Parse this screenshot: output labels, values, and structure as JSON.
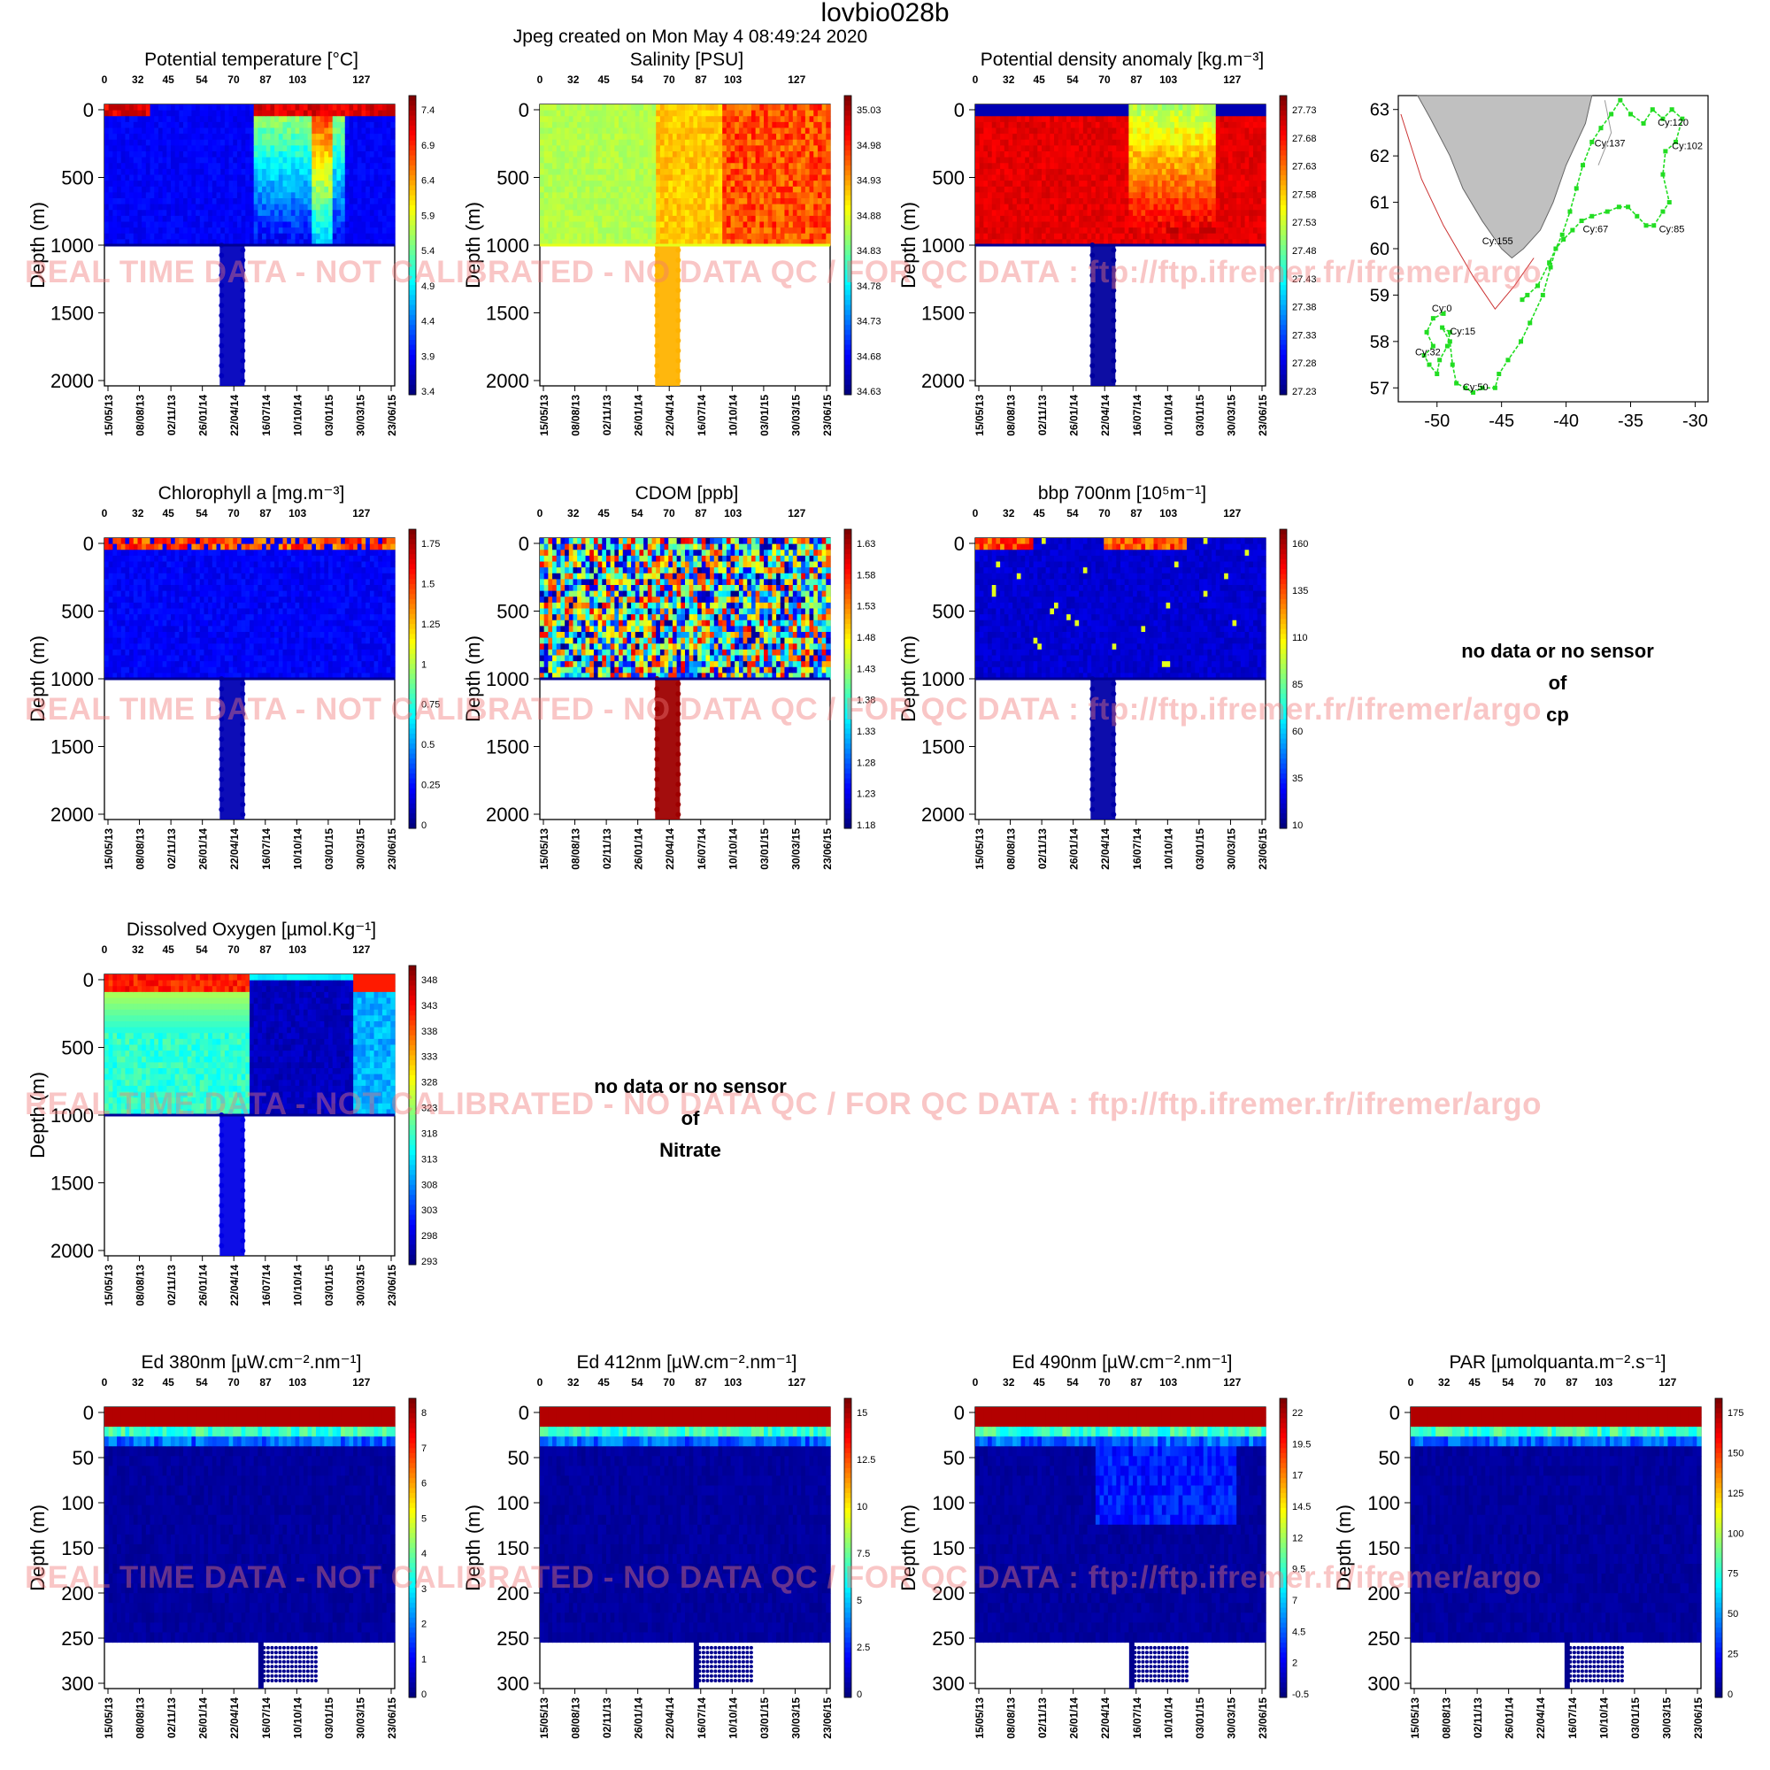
{
  "page": {
    "title": "lovbio028b",
    "subtitle": "Jpeg created on  Mon May  4 08:49:24 2020",
    "watermark": "REAL TIME DATA - NOT CALIBRATED - NO DATA QC   /  FOR QC DATA : ftp://ftp.ifremer.fr/ifremer/argo",
    "no_data": [
      {
        "line1": "no data or no sensor",
        "line2": "of",
        "param": "cp"
      },
      {
        "line1": "no data or no sensor",
        "line2": "of",
        "param": "Nitrate"
      }
    ]
  },
  "chart_data": [
    {
      "type": "heatmap",
      "title": "Potential temperature [°C]",
      "ylabel": "Depth (m)",
      "ylim": [
        2000,
        0
      ],
      "yticks": [
        "0",
        "500",
        "1000",
        "1500",
        "2000"
      ],
      "cycle_ticks": [
        "0",
        "32",
        "45",
        "54",
        "70",
        "87",
        "103",
        "127"
      ],
      "date_ticks": [
        "15/05/13",
        "08/08/13",
        "02/11/13",
        "26/01/14",
        "22/04/14",
        "16/07/14",
        "10/10/14",
        "03/01/15",
        "30/03/15",
        "23/06/15"
      ],
      "colorbar": [
        "7.4",
        "6.9",
        "6.4",
        "5.9",
        "5.4",
        "4.9",
        "4.4",
        "3.9",
        "3.4"
      ],
      "colorscale": "jet",
      "grid": false
    },
    {
      "type": "heatmap",
      "title": "Salinity [PSU]",
      "ylabel": "Depth (m)",
      "ylim": [
        2000,
        0
      ],
      "yticks": [
        "0",
        "500",
        "1000",
        "1500",
        "2000"
      ],
      "cycle_ticks": [
        "0",
        "32",
        "45",
        "54",
        "70",
        "87",
        "103",
        "127"
      ],
      "date_ticks": [
        "15/05/13",
        "08/08/13",
        "02/11/13",
        "26/01/14",
        "22/04/14",
        "16/07/14",
        "10/10/14",
        "03/01/15",
        "30/03/15",
        "23/06/15"
      ],
      "colorbar": [
        "35.03",
        "34.98",
        "34.93",
        "34.88",
        "34.83",
        "34.78",
        "34.73",
        "34.68",
        "34.63"
      ],
      "colorscale": "jet",
      "grid": false
    },
    {
      "type": "heatmap",
      "title": "Potential density anomaly [kg.m⁻³]",
      "ylabel": "Depth (m)",
      "ylim": [
        2000,
        0
      ],
      "yticks": [
        "0",
        "500",
        "1000",
        "1500",
        "2000"
      ],
      "cycle_ticks": [
        "0",
        "32",
        "45",
        "54",
        "70",
        "87",
        "103",
        "127"
      ],
      "date_ticks": [
        "15/05/13",
        "08/08/13",
        "02/11/13",
        "26/01/14",
        "22/04/14",
        "16/07/14",
        "10/10/14",
        "03/01/15",
        "30/03/15",
        "23/06/15"
      ],
      "colorbar": [
        "27.73",
        "27.68",
        "27.63",
        "27.58",
        "27.53",
        "27.48",
        "27.43",
        "27.38",
        "27.33",
        "27.28",
        "27.23"
      ],
      "colorscale": "jet_reversed",
      "grid": false
    },
    {
      "type": "map",
      "xticks": [
        "-50",
        "-45",
        "-40",
        "-35",
        "-30"
      ],
      "yticks": [
        "63",
        "62",
        "61",
        "60",
        "59",
        "58",
        "57"
      ],
      "xlim": [
        -53,
        -29
      ],
      "ylim": [
        56.7,
        63.3
      ],
      "land_color": "#c0c0c0",
      "track_color": "#22dd22",
      "track": [
        [
          -49.5,
          58.6
        ],
        [
          -50.3,
          58.5
        ],
        [
          -50.8,
          58.2
        ],
        [
          -50.3,
          57.9
        ],
        [
          -51.0,
          57.7
        ],
        [
          -50.6,
          57.5
        ],
        [
          -50.0,
          57.3
        ],
        [
          -49.8,
          57.6
        ],
        [
          -49.2,
          57.9
        ],
        [
          -49.0,
          58.2
        ],
        [
          -49.6,
          58.3
        ],
        [
          -49.0,
          58.0
        ],
        [
          -48.8,
          57.5
        ],
        [
          -48.5,
          57.1
        ],
        [
          -47.8,
          57.0
        ],
        [
          -47.2,
          56.9
        ],
        [
          -46.5,
          57.0
        ],
        [
          -45.5,
          57.0
        ],
        [
          -45.2,
          57.3
        ],
        [
          -44.5,
          57.6
        ],
        [
          -43.5,
          58.0
        ],
        [
          -42.8,
          58.4
        ],
        [
          -41.8,
          59.0
        ],
        [
          -41.2,
          59.6
        ],
        [
          -40.8,
          60.0
        ],
        [
          -40.2,
          60.2
        ],
        [
          -39.5,
          60.4
        ],
        [
          -38.8,
          60.6
        ],
        [
          -38.0,
          60.7
        ],
        [
          -36.8,
          60.8
        ],
        [
          -35.9,
          60.9
        ],
        [
          -35.2,
          60.9
        ],
        [
          -34.5,
          60.7
        ],
        [
          -33.8,
          60.5
        ],
        [
          -33.2,
          60.5
        ],
        [
          -32.5,
          60.8
        ],
        [
          -32.0,
          61.0
        ],
        [
          -32.5,
          61.6
        ],
        [
          -32.3,
          62.1
        ],
        [
          -31.5,
          62.3
        ],
        [
          -31.0,
          62.8
        ],
        [
          -31.8,
          63.0
        ],
        [
          -32.5,
          62.8
        ],
        [
          -33.3,
          63.0
        ],
        [
          -34.0,
          62.7
        ],
        [
          -35.0,
          62.9
        ],
        [
          -35.8,
          63.2
        ],
        [
          -36.5,
          62.9
        ],
        [
          -37.3,
          62.6
        ],
        [
          -38.0,
          62.3
        ],
        [
          -38.7,
          61.8
        ],
        [
          -39.2,
          61.3
        ],
        [
          -39.7,
          60.8
        ],
        [
          -40.3,
          60.3
        ],
        [
          -41.3,
          59.7
        ],
        [
          -42.2,
          59.2
        ],
        [
          -43.0,
          59.0
        ],
        [
          -43.4,
          58.9
        ]
      ],
      "labels": [
        {
          "text": "Cy:0",
          "lon": -50.4,
          "lat": 58.65
        },
        {
          "text": "Cy:15",
          "lon": -49.0,
          "lat": 58.15
        },
        {
          "text": "Cy:32",
          "lon": -51.7,
          "lat": 57.7
        },
        {
          "text": "Cy:50",
          "lon": -48.0,
          "lat": 56.95
        },
        {
          "text": "Cy:155",
          "lon": -46.5,
          "lat": 60.1
        },
        {
          "text": "Cy:67",
          "lon": -38.7,
          "lat": 60.35
        },
        {
          "text": "Cy:85",
          "lon": -32.8,
          "lat": 60.35
        },
        {
          "text": "Cy:137",
          "lon": -37.8,
          "lat": 62.2
        },
        {
          "text": "Cy:120",
          "lon": -32.9,
          "lat": 62.65
        },
        {
          "text": "Cy:102",
          "lon": -31.8,
          "lat": 62.15
        }
      ]
    },
    {
      "type": "heatmap",
      "title": "Chlorophyll a [mg.m⁻³]",
      "ylabel": "Depth (m)",
      "ylim": [
        2000,
        0
      ],
      "yticks": [
        "0",
        "500",
        "1000",
        "1500",
        "2000"
      ],
      "cycle_ticks": [
        "0",
        "32",
        "45",
        "54",
        "70",
        "87",
        "103",
        "127"
      ],
      "date_ticks": [
        "15/05/13",
        "08/08/13",
        "02/11/13",
        "26/01/14",
        "22/04/14",
        "16/07/14",
        "10/10/14",
        "03/01/15",
        "30/03/15",
        "23/06/15"
      ],
      "colorbar": [
        "1.75",
        "1.5",
        "1.25",
        "1",
        "0.75",
        "0.5",
        "0.25",
        "0"
      ],
      "colorscale": "jet",
      "grid": false
    },
    {
      "type": "heatmap",
      "title": "CDOM  [ppb]",
      "ylabel": "Depth (m)",
      "ylim": [
        2000,
        0
      ],
      "yticks": [
        "0",
        "500",
        "1000",
        "1500",
        "2000"
      ],
      "cycle_ticks": [
        "0",
        "32",
        "45",
        "54",
        "70",
        "87",
        "103",
        "127"
      ],
      "date_ticks": [
        "15/05/13",
        "08/08/13",
        "02/11/13",
        "26/01/14",
        "22/04/14",
        "16/07/14",
        "10/10/14",
        "03/01/15",
        "30/03/15",
        "23/06/15"
      ],
      "colorbar": [
        "1.63",
        "1.58",
        "1.53",
        "1.48",
        "1.43",
        "1.38",
        "1.33",
        "1.28",
        "1.23",
        "1.18"
      ],
      "colorscale": "jet",
      "grid": false
    },
    {
      "type": "heatmap",
      "title": "bbp 700nm [10⁵m⁻¹]",
      "ylabel": "Depth (m)",
      "ylim": [
        2000,
        0
      ],
      "yticks": [
        "0",
        "500",
        "1000",
        "1500",
        "2000"
      ],
      "cycle_ticks": [
        "0",
        "32",
        "45",
        "54",
        "70",
        "87",
        "103",
        "127"
      ],
      "date_ticks": [
        "15/05/13",
        "08/08/13",
        "02/11/13",
        "26/01/14",
        "22/04/14",
        "16/07/14",
        "10/10/14",
        "03/01/15",
        "30/03/15",
        "23/06/15"
      ],
      "colorbar": [
        "160",
        "135",
        "110",
        "85",
        "60",
        "35",
        "10"
      ],
      "colorscale": "jet",
      "grid": false
    },
    {
      "type": "heatmap",
      "title": "Dissolved Oxygen [µmol.Kg⁻¹]",
      "ylabel": "Depth (m)",
      "ylim": [
        2000,
        0
      ],
      "yticks": [
        "0",
        "500",
        "1000",
        "1500",
        "2000"
      ],
      "cycle_ticks": [
        "0",
        "32",
        "45",
        "54",
        "70",
        "87",
        "103",
        "127"
      ],
      "date_ticks": [
        "15/05/13",
        "08/08/13",
        "02/11/13",
        "26/01/14",
        "22/04/14",
        "16/07/14",
        "10/10/14",
        "03/01/15",
        "30/03/15",
        "23/06/15"
      ],
      "colorbar": [
        "348",
        "343",
        "338",
        "333",
        "328",
        "323",
        "318",
        "313",
        "308",
        "303",
        "298",
        "293"
      ],
      "colorscale": "jet",
      "grid": false
    },
    {
      "type": "heatmap",
      "title": "Ed 380nm [µW.cm⁻².nm⁻¹]",
      "ylabel": "Depth (m)",
      "ylim": [
        300,
        0
      ],
      "yticks": [
        "0",
        "50",
        "100",
        "150",
        "200",
        "250",
        "300"
      ],
      "cycle_ticks": [
        "0",
        "32",
        "45",
        "54",
        "70",
        "87",
        "103",
        "127"
      ],
      "date_ticks": [
        "15/05/13",
        "08/08/13",
        "02/11/13",
        "26/01/14",
        "22/04/14",
        "16/07/14",
        "10/10/14",
        "03/01/15",
        "30/03/15",
        "23/06/15"
      ],
      "colorbar": [
        "8",
        "7",
        "6",
        "5",
        "4",
        "3",
        "2",
        "1",
        "0"
      ],
      "colorscale": "jet",
      "grid": false
    },
    {
      "type": "heatmap",
      "title": "Ed 412nm [µW.cm⁻².nm⁻¹]",
      "ylabel": "Depth (m)",
      "ylim": [
        300,
        0
      ],
      "yticks": [
        "0",
        "50",
        "100",
        "150",
        "200",
        "250",
        "300"
      ],
      "cycle_ticks": [
        "0",
        "32",
        "45",
        "54",
        "70",
        "87",
        "103",
        "127"
      ],
      "date_ticks": [
        "15/05/13",
        "08/08/13",
        "02/11/13",
        "26/01/14",
        "22/04/14",
        "16/07/14",
        "10/10/14",
        "03/01/15",
        "30/03/15",
        "23/06/15"
      ],
      "colorbar": [
        "15",
        "12.5",
        "10",
        "7.5",
        "5",
        "2.5",
        "0"
      ],
      "colorscale": "jet",
      "grid": false
    },
    {
      "type": "heatmap",
      "title": "Ed 490nm [µW.cm⁻².nm⁻¹]",
      "ylabel": "Depth (m)",
      "ylim": [
        300,
        0
      ],
      "yticks": [
        "0",
        "50",
        "100",
        "150",
        "200",
        "250",
        "300"
      ],
      "cycle_ticks": [
        "0",
        "32",
        "45",
        "54",
        "70",
        "87",
        "103",
        "127"
      ],
      "date_ticks": [
        "15/05/13",
        "08/08/13",
        "02/11/13",
        "26/01/14",
        "22/04/14",
        "16/07/14",
        "10/10/14",
        "03/01/15",
        "30/03/15",
        "23/06/15"
      ],
      "colorbar": [
        "22",
        "19.5",
        "17",
        "14.5",
        "12",
        "9.5",
        "7",
        "4.5",
        "2",
        "-0.5"
      ],
      "colorscale": "jet",
      "grid": false
    },
    {
      "type": "heatmap",
      "title": "PAR [µmolquanta.m⁻².s⁻¹]",
      "ylabel": "Depth (m)",
      "ylim": [
        300,
        0
      ],
      "yticks": [
        "0",
        "50",
        "100",
        "150",
        "200",
        "250",
        "300"
      ],
      "cycle_ticks": [
        "0",
        "32",
        "45",
        "54",
        "70",
        "87",
        "103",
        "127"
      ],
      "date_ticks": [
        "15/05/13",
        "08/08/13",
        "02/11/13",
        "26/01/14",
        "22/04/14",
        "16/07/14",
        "10/10/14",
        "03/01/15",
        "30/03/15",
        "23/06/15"
      ],
      "colorbar": [
        "175",
        "150",
        "125",
        "100",
        "75",
        "50",
        "25",
        "0"
      ],
      "colorscale": "jet",
      "grid": false
    }
  ]
}
